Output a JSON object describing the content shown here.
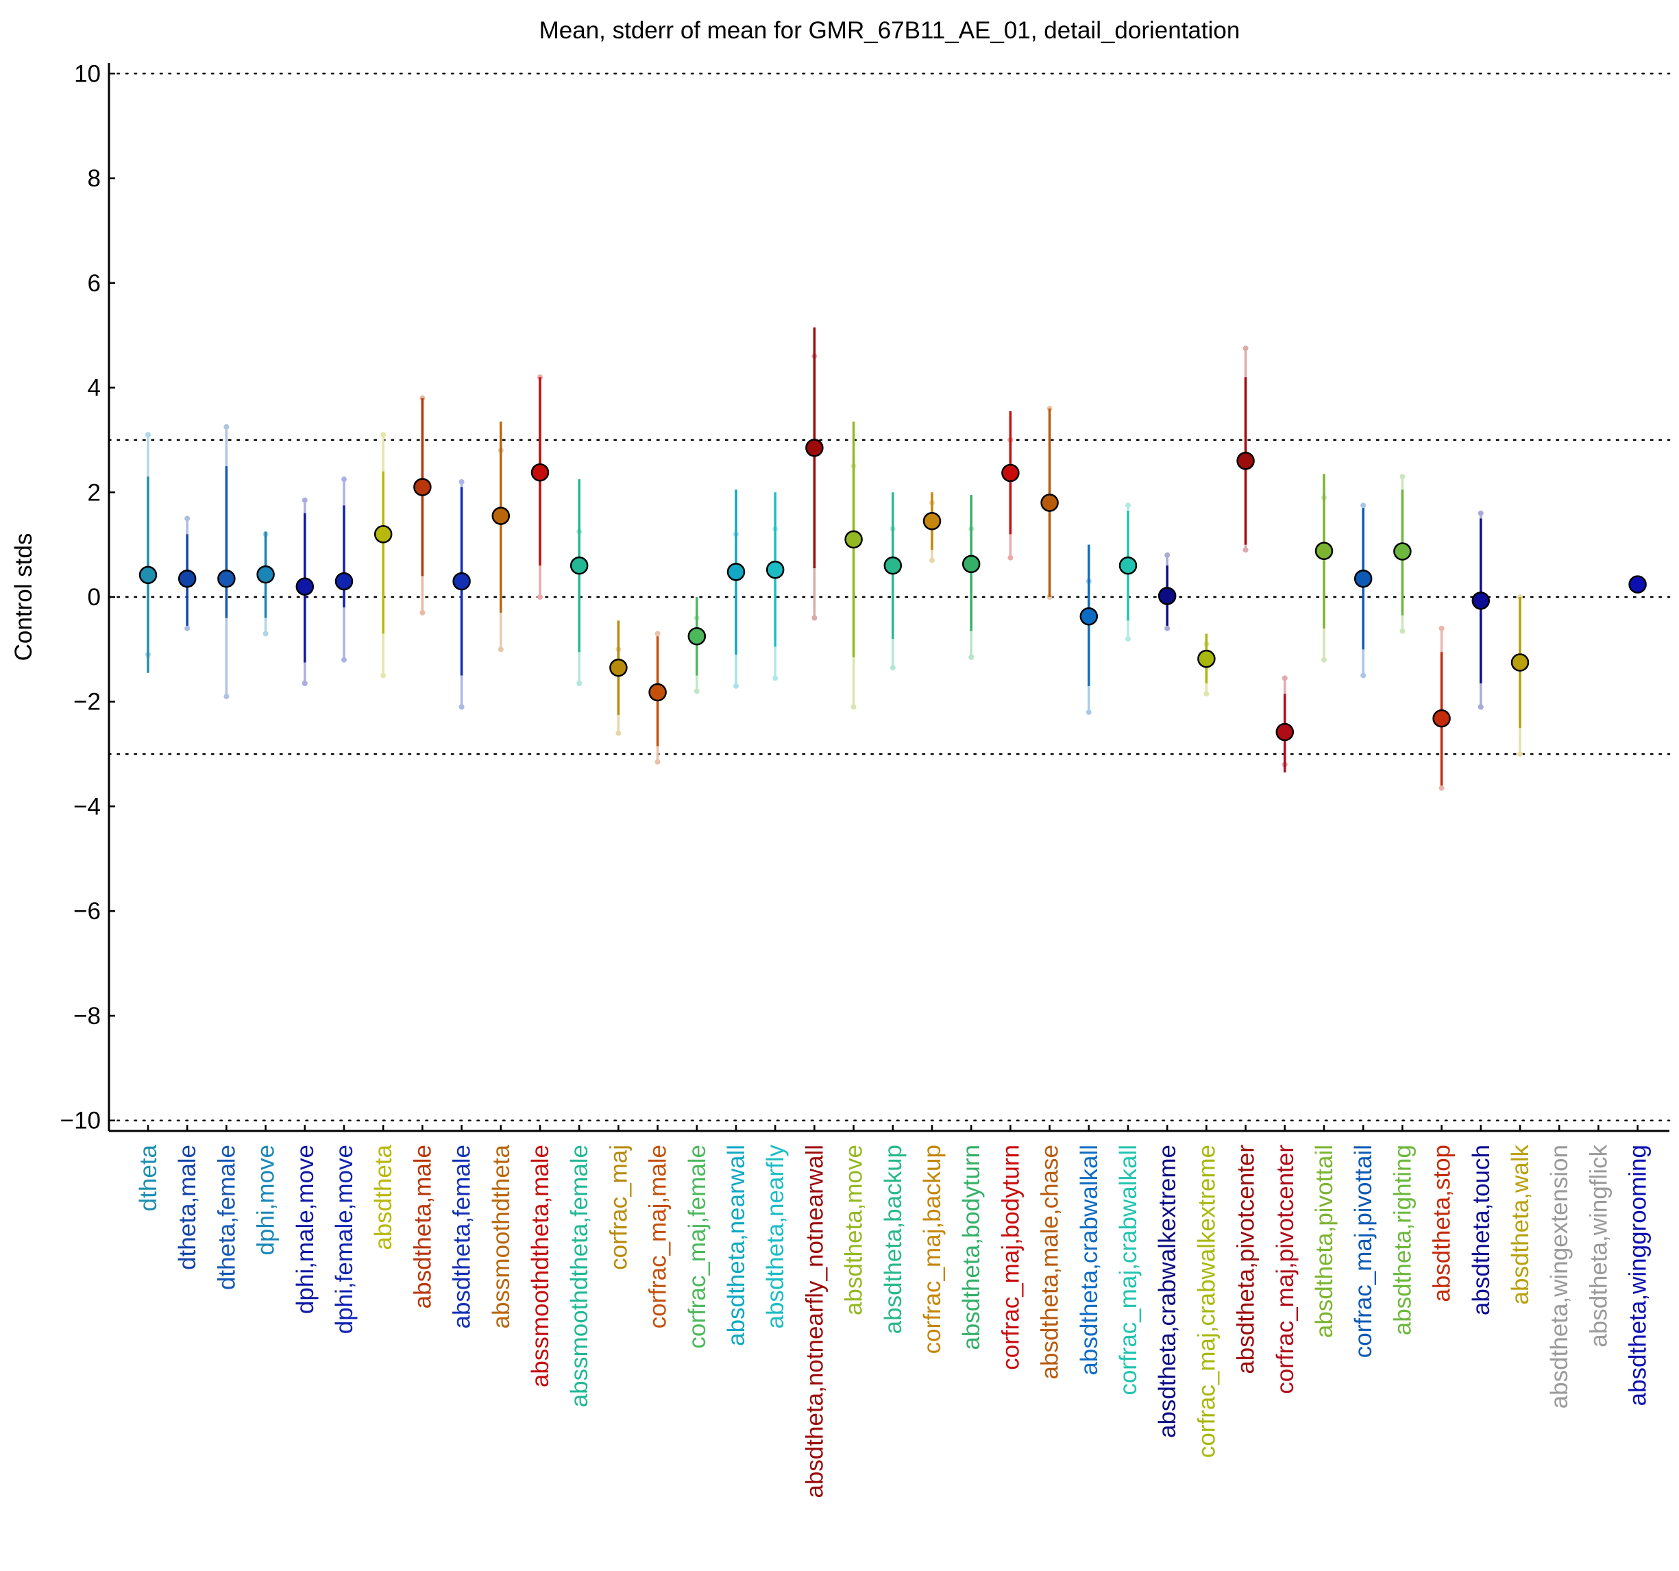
{
  "chart_data": {
    "type": "scatter",
    "title": "Mean, stderr of mean for GMR_67B11_AE_01, detail_dorientation",
    "xlabel": "",
    "ylabel": "Control stds",
    "ylim": [
      -10.2,
      10.2
    ],
    "yticks": [
      10,
      8,
      6,
      4,
      2,
      0,
      -2,
      -4,
      -6,
      -8,
      -10
    ],
    "ytick_labels": [
      "10",
      "8",
      "6",
      "4",
      "2",
      "0",
      "−2",
      "−4",
      "−6",
      "−8",
      "−10"
    ],
    "reference_lines": [
      10,
      3,
      0,
      -3,
      -10
    ],
    "grid": false,
    "legend": "none",
    "points": [
      {
        "label": "dtheta",
        "color": "#1f8fb0",
        "mean": 0.42,
        "err_dark": [
          -1.45,
          2.3
        ],
        "err_light": [
          -1.1,
          3.1
        ]
      },
      {
        "label": "dtheta,male",
        "color": "#1243a8",
        "mean": 0.35,
        "err_dark": [
          -0.55,
          1.2
        ],
        "err_light": [
          -0.6,
          1.5
        ]
      },
      {
        "label": "dtheta,female",
        "color": "#1657b4",
        "mean": 0.35,
        "err_dark": [
          -0.4,
          2.5
        ],
        "err_light": [
          -1.9,
          3.25
        ]
      },
      {
        "label": "dphi,move",
        "color": "#1a86b8",
        "mean": 0.43,
        "err_dark": [
          -0.4,
          1.25
        ],
        "err_light": [
          -0.7,
          1.2
        ]
      },
      {
        "label": "dphi,male,move",
        "color": "#0f17a6",
        "mean": 0.2,
        "err_dark": [
          -1.25,
          1.6
        ],
        "err_light": [
          -1.65,
          1.85
        ]
      },
      {
        "label": "dphi,female,move",
        "color": "#1024b0",
        "mean": 0.3,
        "err_dark": [
          -0.2,
          1.75
        ],
        "err_light": [
          -1.2,
          2.25
        ]
      },
      {
        "label": "absdtheta",
        "color": "#b8b80c",
        "mean": 1.2,
        "err_dark": [
          -0.7,
          2.4
        ],
        "err_light": [
          -1.5,
          3.1
        ]
      },
      {
        "label": "absdtheta,male",
        "color": "#b8360a",
        "mean": 2.1,
        "err_dark": [
          0.4,
          3.8
        ],
        "err_light": [
          -0.3,
          3.8
        ]
      },
      {
        "label": "absdtheta,female",
        "color": "#1330b4",
        "mean": 0.3,
        "err_dark": [
          -1.5,
          2.1
        ],
        "err_light": [
          -2.1,
          2.2
        ]
      },
      {
        "label": "abssmoothdtheta",
        "color": "#b8660c",
        "mean": 1.55,
        "err_dark": [
          -0.3,
          3.35
        ],
        "err_light": [
          -1.0,
          2.8
        ]
      },
      {
        "label": "abssmoothdtheta,male",
        "color": "#c40c0c",
        "mean": 2.38,
        "err_dark": [
          0.6,
          4.2
        ],
        "err_light": [
          0.0,
          4.2
        ]
      },
      {
        "label": "abssmoothdtheta,female",
        "color": "#22b894",
        "mean": 0.6,
        "err_dark": [
          -1.05,
          2.25
        ],
        "err_light": [
          -1.65,
          1.25
        ]
      },
      {
        "label": "corfrac_maj",
        "color": "#b88a0c",
        "mean": -1.35,
        "err_dark": [
          -2.25,
          -0.45
        ],
        "err_light": [
          -2.6,
          -1.0
        ]
      },
      {
        "label": "corfrac_maj,male",
        "color": "#c4500c",
        "mean": -1.82,
        "err_dark": [
          -2.85,
          -0.75
        ],
        "err_light": [
          -3.15,
          -0.7
        ]
      },
      {
        "label": "corfrac_maj,female",
        "color": "#4cb85c",
        "mean": -0.75,
        "err_dark": [
          -1.5,
          0.0
        ],
        "err_light": [
          -1.8,
          -0.4
        ]
      },
      {
        "label": "absdtheta,nearwall",
        "color": "#10a8c4",
        "mean": 0.48,
        "err_dark": [
          -1.1,
          2.05
        ],
        "err_light": [
          -1.7,
          1.2
        ]
      },
      {
        "label": "absdtheta,nearfly",
        "color": "#1cbcc4",
        "mean": 0.52,
        "err_dark": [
          -0.95,
          2.0
        ],
        "err_light": [
          -1.55,
          1.3
        ]
      },
      {
        "label": "absdtheta,notnearfly_notnearwall",
        "color": "#9c0a0a",
        "mean": 2.85,
        "err_dark": [
          0.55,
          5.15
        ],
        "err_light": [
          -0.4,
          4.6
        ]
      },
      {
        "label": "absdtheta,move",
        "color": "#94b822",
        "mean": 1.1,
        "err_dark": [
          -1.15,
          3.35
        ],
        "err_light": [
          -2.1,
          2.5
        ]
      },
      {
        "label": "absdtheta,backup",
        "color": "#28b88c",
        "mean": 0.6,
        "err_dark": [
          -0.8,
          2.0
        ],
        "err_light": [
          -1.35,
          1.3
        ]
      },
      {
        "label": "corfrac_maj,backup",
        "color": "#c4860c",
        "mean": 1.45,
        "err_dark": [
          0.9,
          2.0
        ],
        "err_light": [
          0.7,
          1.8
        ]
      },
      {
        "label": "absdtheta,bodyturn",
        "color": "#34b068",
        "mean": 0.63,
        "err_dark": [
          -0.65,
          1.95
        ],
        "err_light": [
          -1.15,
          1.3
        ]
      },
      {
        "label": "corfrac_maj,bodyturn",
        "color": "#c80c0c",
        "mean": 2.37,
        "err_dark": [
          1.2,
          3.55
        ],
        "err_light": [
          0.75,
          3.0
        ]
      },
      {
        "label": "absdtheta,male,chase",
        "color": "#b85a0c",
        "mean": 1.8,
        "err_dark": [
          0.0,
          3.6
        ],
        "err_light": [
          0.0,
          3.6
        ]
      },
      {
        "label": "absdtheta,crabwalkall",
        "color": "#0c6cc4",
        "mean": -0.37,
        "err_dark": [
          -1.7,
          1.0
        ],
        "err_light": [
          -2.2,
          0.3
        ]
      },
      {
        "label": "corfrac_maj,crabwalkall",
        "color": "#22c4b0",
        "mean": 0.6,
        "err_dark": [
          -0.45,
          1.65
        ],
        "err_light": [
          -0.8,
          1.75
        ]
      },
      {
        "label": "absdtheta,crabwalkextreme",
        "color": "#0c0c84",
        "mean": 0.02,
        "err_dark": [
          -0.55,
          0.6
        ],
        "err_light": [
          -0.6,
          0.8
        ]
      },
      {
        "label": "corfrac_maj,crabwalkextreme",
        "color": "#a8b80c",
        "mean": -1.18,
        "err_dark": [
          -1.65,
          -0.7
        ],
        "err_light": [
          -1.85,
          -0.9
        ]
      },
      {
        "label": "absdtheta,pivotcenter",
        "color": "#9c0c0c",
        "mean": 2.6,
        "err_dark": [
          1.0,
          4.2
        ],
        "err_light": [
          0.9,
          4.75
        ]
      },
      {
        "label": "corfrac_maj,pivotcenter",
        "color": "#b00c18",
        "mean": -2.58,
        "err_dark": [
          -3.35,
          -1.85
        ],
        "err_light": [
          -3.2,
          -1.55
        ]
      },
      {
        "label": "absdtheta,pivottail",
        "color": "#7cb430",
        "mean": 0.88,
        "err_dark": [
          -0.6,
          2.35
        ],
        "err_light": [
          -1.2,
          1.9
        ]
      },
      {
        "label": "corfrac_maj,pivottail",
        "color": "#0c5ab4",
        "mean": 0.35,
        "err_dark": [
          -1.0,
          1.7
        ],
        "err_light": [
          -1.5,
          1.75
        ]
      },
      {
        "label": "absdtheta,righting",
        "color": "#6cb83c",
        "mean": 0.87,
        "err_dark": [
          -0.35,
          2.05
        ],
        "err_light": [
          -0.65,
          2.3
        ]
      },
      {
        "label": "absdtheta,stop",
        "color": "#c42c0c",
        "mean": -2.32,
        "err_dark": [
          -3.6,
          -1.05
        ],
        "err_light": [
          -3.65,
          -0.6
        ]
      },
      {
        "label": "absdtheta,touch",
        "color": "#0c0c94",
        "mean": -0.07,
        "err_dark": [
          -1.65,
          1.5
        ],
        "err_light": [
          -2.1,
          1.6
        ]
      },
      {
        "label": "absdtheta,walk",
        "color": "#b8a00c",
        "mean": -1.25,
        "err_dark": [
          -2.5,
          0.0
        ],
        "err_light": [
          -3.0,
          0.0
        ]
      },
      {
        "label": "absdtheta,wingextension",
        "color": "#9a9a9a",
        "mean": null,
        "err_dark": null,
        "err_light": null
      },
      {
        "label": "absdtheta,wingflick",
        "color": "#9a9a9a",
        "mean": null,
        "err_dark": null,
        "err_light": null
      },
      {
        "label": "absdtheta,winggrooming",
        "color": "#0c10b0",
        "mean": 0.24,
        "err_dark": null,
        "err_light": null
      }
    ]
  }
}
